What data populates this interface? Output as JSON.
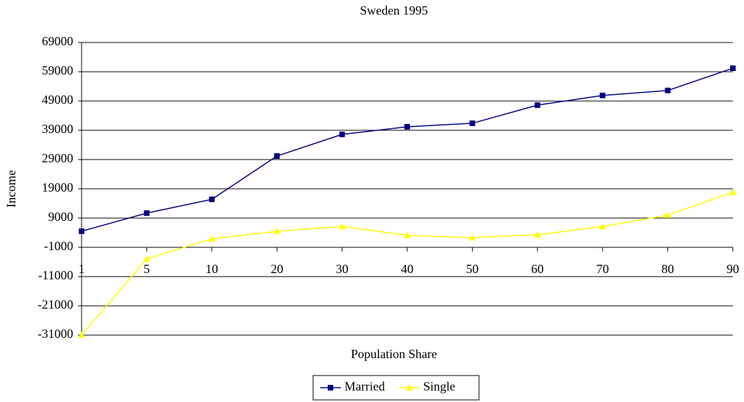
{
  "chart_data": {
    "type": "line",
    "title": "Sweden 1995",
    "x_label": "Population Share",
    "y_label": "Income",
    "categories": [
      "1",
      "5",
      "10",
      "20",
      "30",
      "40",
      "50",
      "60",
      "70",
      "80",
      "90"
    ],
    "series": [
      {
        "name": "Married",
        "color": "#000080",
        "marker": "square",
        "values": [
          4500,
          10700,
          15400,
          30200,
          37600,
          40200,
          41400,
          47600,
          50900,
          52600,
          60200
        ]
      },
      {
        "name": "Single",
        "color": "#ffff00",
        "marker": "triangle",
        "values": [
          -31000,
          -5000,
          1900,
          4500,
          6100,
          3100,
          2300,
          3300,
          6100,
          10000,
          17800
        ]
      }
    ],
    "ylim": [
      -31000,
      69000
    ],
    "yticks": [
      -31000,
      -21000,
      -11000,
      -1000,
      9000,
      19000,
      29000,
      39000,
      49000,
      59000,
      69000
    ],
    "x_axis_crossing": -1000,
    "grid": true,
    "legend": "bottom"
  }
}
